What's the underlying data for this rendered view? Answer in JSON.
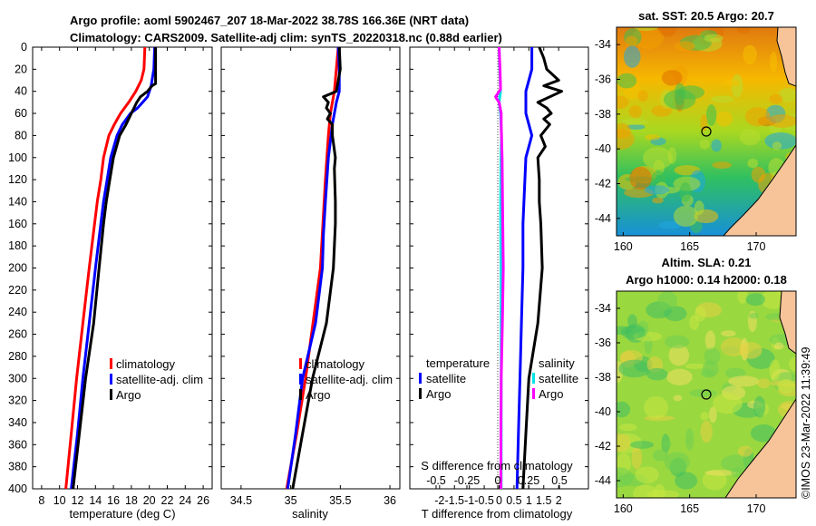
{
  "header": {
    "title_line1": "Argo profile: aoml 5902467_207 18-Mar-2022 38.78S 166.36E (NRT data)",
    "title_line2": "Climatology: CARS2009. Satellite-adj clim: synTS_20220318.nc (0.88d earlier)"
  },
  "colors": {
    "climatology": "#ff0000",
    "satellite_clim": "#0000ff",
    "argo": "#000000",
    "s_satellite": "#00e5e5",
    "s_argo": "#ff00ff"
  },
  "depth_ticks": [
    "0",
    "20",
    "40",
    "60",
    "80",
    "100",
    "120",
    "140",
    "160",
    "180",
    "200",
    "220",
    "240",
    "260",
    "280",
    "300",
    "320",
    "340",
    "360",
    "380",
    "400"
  ],
  "chart_data": [
    {
      "type": "line",
      "name": "temperature",
      "xlabel": "temperature (deg C)",
      "ylabel": "",
      "xlim": [
        7,
        27
      ],
      "ylim": [
        400,
        0
      ],
      "xticks": [
        "8",
        "10",
        "12",
        "14",
        "16",
        "18",
        "20",
        "22",
        "24",
        "26"
      ],
      "xtick_values": [
        8,
        10,
        12,
        14,
        16,
        18,
        20,
        22,
        24,
        26
      ],
      "legend": [
        "climatology",
        "satellite-adj. clim",
        "Argo"
      ],
      "series": [
        {
          "name": "climatology",
          "color": "#ff0000",
          "depth": [
            0,
            20,
            30,
            40,
            50,
            60,
            70,
            80,
            100,
            120,
            140,
            160,
            200,
            250,
            300,
            350,
            400
          ],
          "values": [
            19.5,
            19.4,
            19.1,
            18.5,
            17.7,
            16.8,
            16.1,
            15.5,
            14.9,
            14.6,
            14.2,
            13.9,
            13.3,
            12.6,
            11.9,
            11.3,
            10.7
          ]
        },
        {
          "name": "satellite-adj. clim",
          "color": "#0000ff",
          "depth": [
            0,
            20,
            35,
            45,
            55,
            60,
            70,
            80,
            100,
            120,
            140,
            160,
            200,
            250,
            300,
            350,
            400
          ],
          "values": [
            20.6,
            20.5,
            20.2,
            19.8,
            18.7,
            17.9,
            17.0,
            16.4,
            15.7,
            15.3,
            14.9,
            14.6,
            14.0,
            13.3,
            12.6,
            12.0,
            11.3
          ]
        },
        {
          "name": "Argo",
          "color": "#000000",
          "depth": [
            0,
            20,
            33,
            35,
            40,
            45,
            50,
            60,
            70,
            80,
            100,
            120,
            140,
            160,
            200,
            250,
            300,
            350,
            400
          ],
          "values": [
            20.7,
            20.7,
            20.7,
            20.3,
            19.8,
            19.0,
            18.6,
            18.0,
            17.4,
            16.7,
            16.0,
            15.6,
            15.2,
            14.9,
            14.4,
            13.8,
            12.9,
            12.2,
            11.5
          ]
        }
      ]
    },
    {
      "type": "line",
      "name": "salinity",
      "xlabel": "salinity",
      "xlim": [
        34.3,
        36.1
      ],
      "ylim": [
        400,
        0
      ],
      "xticks": [
        "34.5",
        "35",
        "35.5",
        "36"
      ],
      "xtick_values": [
        34.5,
        35,
        35.5,
        36
      ],
      "legend": [
        "climatology",
        "satellite-adj. clim",
        "Argo"
      ],
      "series": [
        {
          "name": "climatology",
          "color": "#ff0000",
          "depth": [
            0,
            40,
            60,
            80,
            120,
            200,
            300,
            350,
            400
          ],
          "values": [
            35.48,
            35.44,
            35.4,
            35.38,
            35.35,
            35.3,
            35.15,
            35.06,
            34.96
          ]
        },
        {
          "name": "satellite-adj. clim",
          "color": "#0000ff",
          "depth": [
            0,
            20,
            40,
            50,
            70,
            100,
            140,
            170,
            200,
            250,
            300,
            350,
            400
          ],
          "values": [
            35.48,
            35.49,
            35.49,
            35.46,
            35.42,
            35.38,
            35.35,
            35.33,
            35.32,
            35.25,
            35.12,
            35.05,
            34.97
          ]
        },
        {
          "name": "Argo",
          "color": "#000000",
          "depth": [
            0,
            20,
            40,
            45,
            50,
            55,
            60,
            65,
            70,
            80,
            100,
            110,
            140,
            160,
            200,
            250,
            300,
            350,
            400
          ],
          "values": [
            35.49,
            35.5,
            35.46,
            35.33,
            35.38,
            35.36,
            35.4,
            35.37,
            35.42,
            35.42,
            35.45,
            35.44,
            35.45,
            35.45,
            35.43,
            35.36,
            35.22,
            35.12,
            35.02
          ]
        }
      ]
    },
    {
      "type": "line",
      "name": "difference",
      "xlabel": "T difference from climatology",
      "top_label": "S difference from climatology",
      "xlim": [
        -3,
        3
      ],
      "ylim": [
        400,
        0
      ],
      "xticks": [
        "-2",
        "-1.5",
        "-1",
        "-0.5",
        "0",
        "0.5",
        "1",
        "1.5",
        "2"
      ],
      "xtick_values": [
        -2,
        -1.5,
        -1,
        -0.5,
        0,
        0.5,
        1,
        1.5,
        2
      ],
      "sticks": [
        "-0.5",
        "-0.25",
        "0",
        "0.25",
        "0.5"
      ],
      "stick_values": [
        -0.5,
        -0.25,
        0,
        0.25,
        0.5
      ],
      "legend_temperature_title": "temperature",
      "legend_salinity_title": "salinity",
      "legend_temperature": [
        "satellite",
        "Argo"
      ],
      "legend_salinity": [
        "satellite",
        "Argo"
      ],
      "series": [
        {
          "name": "T satellite",
          "color": "#0000ff",
          "depth": [
            0,
            20,
            40,
            60,
            70,
            80,
            90,
            100,
            130,
            160,
            200,
            250,
            300,
            350,
            400
          ],
          "values": [
            1.1,
            1.1,
            0.9,
            0.9,
            1.0,
            1.1,
            1.0,
            0.9,
            0.85,
            0.8,
            0.8,
            0.75,
            0.7,
            0.65,
            0.6
          ]
        },
        {
          "name": "T Argo",
          "color": "#000000",
          "depth": [
            0,
            10,
            20,
            30,
            35,
            40,
            45,
            50,
            55,
            60,
            65,
            70,
            80,
            90,
            100,
            120,
            140,
            160,
            200,
            250,
            300,
            350,
            400
          ],
          "values": [
            1.35,
            1.5,
            1.6,
            2.0,
            1.5,
            2.1,
            1.7,
            1.3,
            1.6,
            1.75,
            1.5,
            1.7,
            1.4,
            1.55,
            1.3,
            1.35,
            1.35,
            1.4,
            1.45,
            1.3,
            1.0,
            0.9,
            0.8
          ]
        },
        {
          "name": "S satellite",
          "color": "#00e5e5",
          "depth": [
            0,
            20,
            40,
            50,
            60,
            80,
            100,
            150,
            200,
            300,
            400
          ],
          "values": [
            0.0,
            0.02,
            0.05,
            0.0,
            0.05,
            0.08,
            0.06,
            0.05,
            0.06,
            0.07,
            0.07
          ]
        },
        {
          "name": "S Argo",
          "color": "#ff00ff",
          "depth": [
            0,
            20,
            38,
            45,
            50,
            60,
            70,
            100,
            150,
            200,
            250,
            300,
            350,
            400
          ],
          "values": [
            0.0,
            0.03,
            0.05,
            -0.12,
            0.0,
            0.07,
            0.07,
            0.1,
            0.12,
            0.14,
            0.11,
            0.07,
            0.06,
            0.06
          ]
        }
      ]
    },
    {
      "type": "heatmap",
      "name": "satellite SST map",
      "title": "sat. SST: 20.5 Argo: 20.7",
      "xlim": [
        159.5,
        173
      ],
      "ylim": [
        -45,
        -33
      ],
      "xticks": [
        "160",
        "165",
        "170"
      ],
      "xtick_values": [
        160,
        165,
        170
      ],
      "yticks": [
        "-34",
        "-36",
        "-38",
        "-40",
        "-42",
        "-44"
      ],
      "ytick_values": [
        -34,
        -36,
        -38,
        -40,
        -42,
        -44
      ],
      "marker": {
        "lon": 166.36,
        "lat": -38.78
      }
    },
    {
      "type": "heatmap",
      "name": "altimetry SLA map",
      "title_line1": "Altim. SLA: 0.21",
      "title_line2": "Argo h1000: 0.14 h2000: 0.18",
      "xlim": [
        159.5,
        173
      ],
      "ylim": [
        -45,
        -33
      ],
      "xticks": [
        "160",
        "165",
        "170"
      ],
      "xtick_values": [
        160,
        165,
        170
      ],
      "yticks": [
        "-34",
        "-36",
        "-38",
        "-40",
        "-42",
        "-44"
      ],
      "ytick_values": [
        -34,
        -36,
        -38,
        -40,
        -42,
        -44
      ],
      "marker": {
        "lon": 166.36,
        "lat": -38.78
      }
    }
  ],
  "copyright": "©IMOS 23-Mar-2022 11:39:49"
}
